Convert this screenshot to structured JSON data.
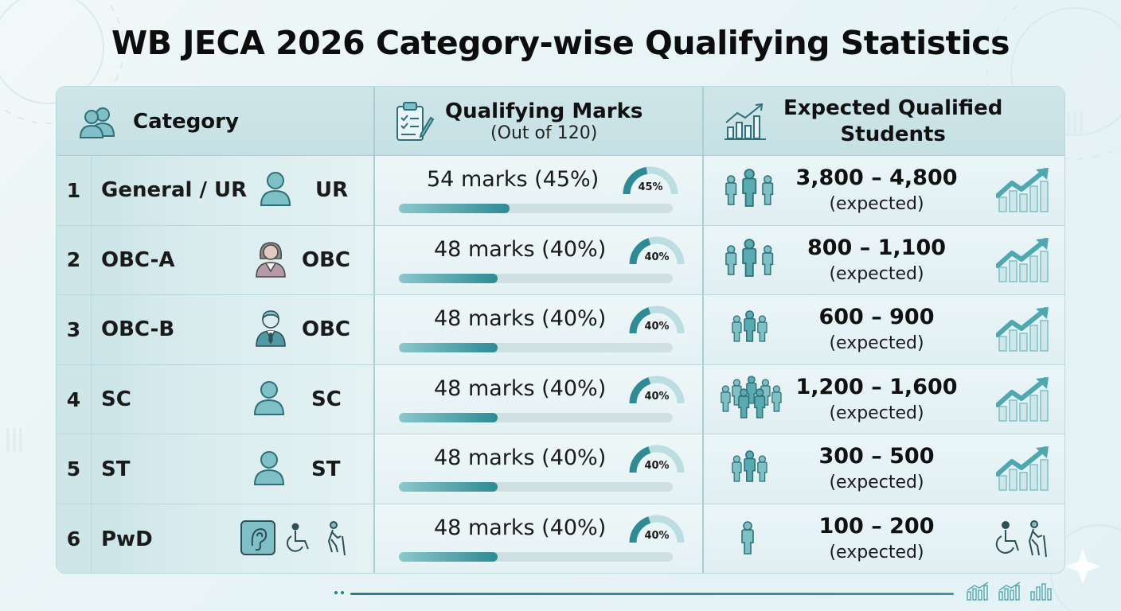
{
  "title": "WB JECA 2026 Category-wise Qualifying Statistics",
  "colors": {
    "accent": "#2e8a94",
    "icon": "#4fa7b0",
    "bar_track": "#cfe0e3",
    "border": "#b9d8dc"
  },
  "header": {
    "category_label": "Category",
    "category_icon": "users-icon",
    "marks_label": "Qualifying Marks",
    "marks_sub": "(Out of 120)",
    "marks_icon": "clipboard-icon",
    "students_label_line1": "Expected Qualified",
    "students_label_line2": "Students",
    "students_icon": "bar-chart-trend-icon"
  },
  "rows": [
    {
      "num": "1",
      "name": "General / UR",
      "abbr": "UR",
      "icon": "person-icon",
      "marks": "54 marks (45%)",
      "percent": "45%",
      "fraction": 0.45,
      "range": "3,800 – 4,800",
      "expected": "(expected)",
      "people_icon": "group-of-three-icon",
      "end_icon": "trend-up-icon"
    },
    {
      "num": "2",
      "name": "OBC-A",
      "abbr": "OBC",
      "icon": "woman-icon",
      "marks": "48 marks (40%)",
      "percent": "40%",
      "fraction": 0.4,
      "range": "800 – 1,100",
      "expected": "(expected)",
      "people_icon": "group-of-three-icon",
      "end_icon": "trend-up-icon"
    },
    {
      "num": "3",
      "name": "OBC-B",
      "abbr": "OBC",
      "icon": "man-suit-icon",
      "marks": "48 marks (40%)",
      "percent": "40%",
      "fraction": 0.4,
      "range": "600 – 900",
      "expected": "(expected)",
      "people_icon": "group-of-three-icon",
      "end_icon": "trend-up-icon"
    },
    {
      "num": "4",
      "name": "SC",
      "abbr": "SC",
      "icon": "person-icon",
      "marks": "48 marks (40%)",
      "percent": "40%",
      "fraction": 0.4,
      "range": "1,200 – 1,600",
      "expected": "(expected)",
      "people_icon": "crowd-icon",
      "end_icon": "trend-up-icon"
    },
    {
      "num": "5",
      "name": "ST",
      "abbr": "ST",
      "icon": "person-icon",
      "marks": "48 marks (40%)",
      "percent": "40%",
      "fraction": 0.4,
      "range": "300 – 500",
      "expected": "(expected)",
      "people_icon": "group-of-three-icon",
      "end_icon": "trend-up-icon"
    },
    {
      "num": "6",
      "name": "PwD",
      "abbr": "",
      "icon": "accessibility-icons",
      "marks": "48 marks (40%)",
      "percent": "40%",
      "fraction": 0.4,
      "range": "100 – 200",
      "expected": "(expected)",
      "people_icon": "single-person-icon",
      "end_icon": "wheelchair-walker-icon"
    }
  ]
}
